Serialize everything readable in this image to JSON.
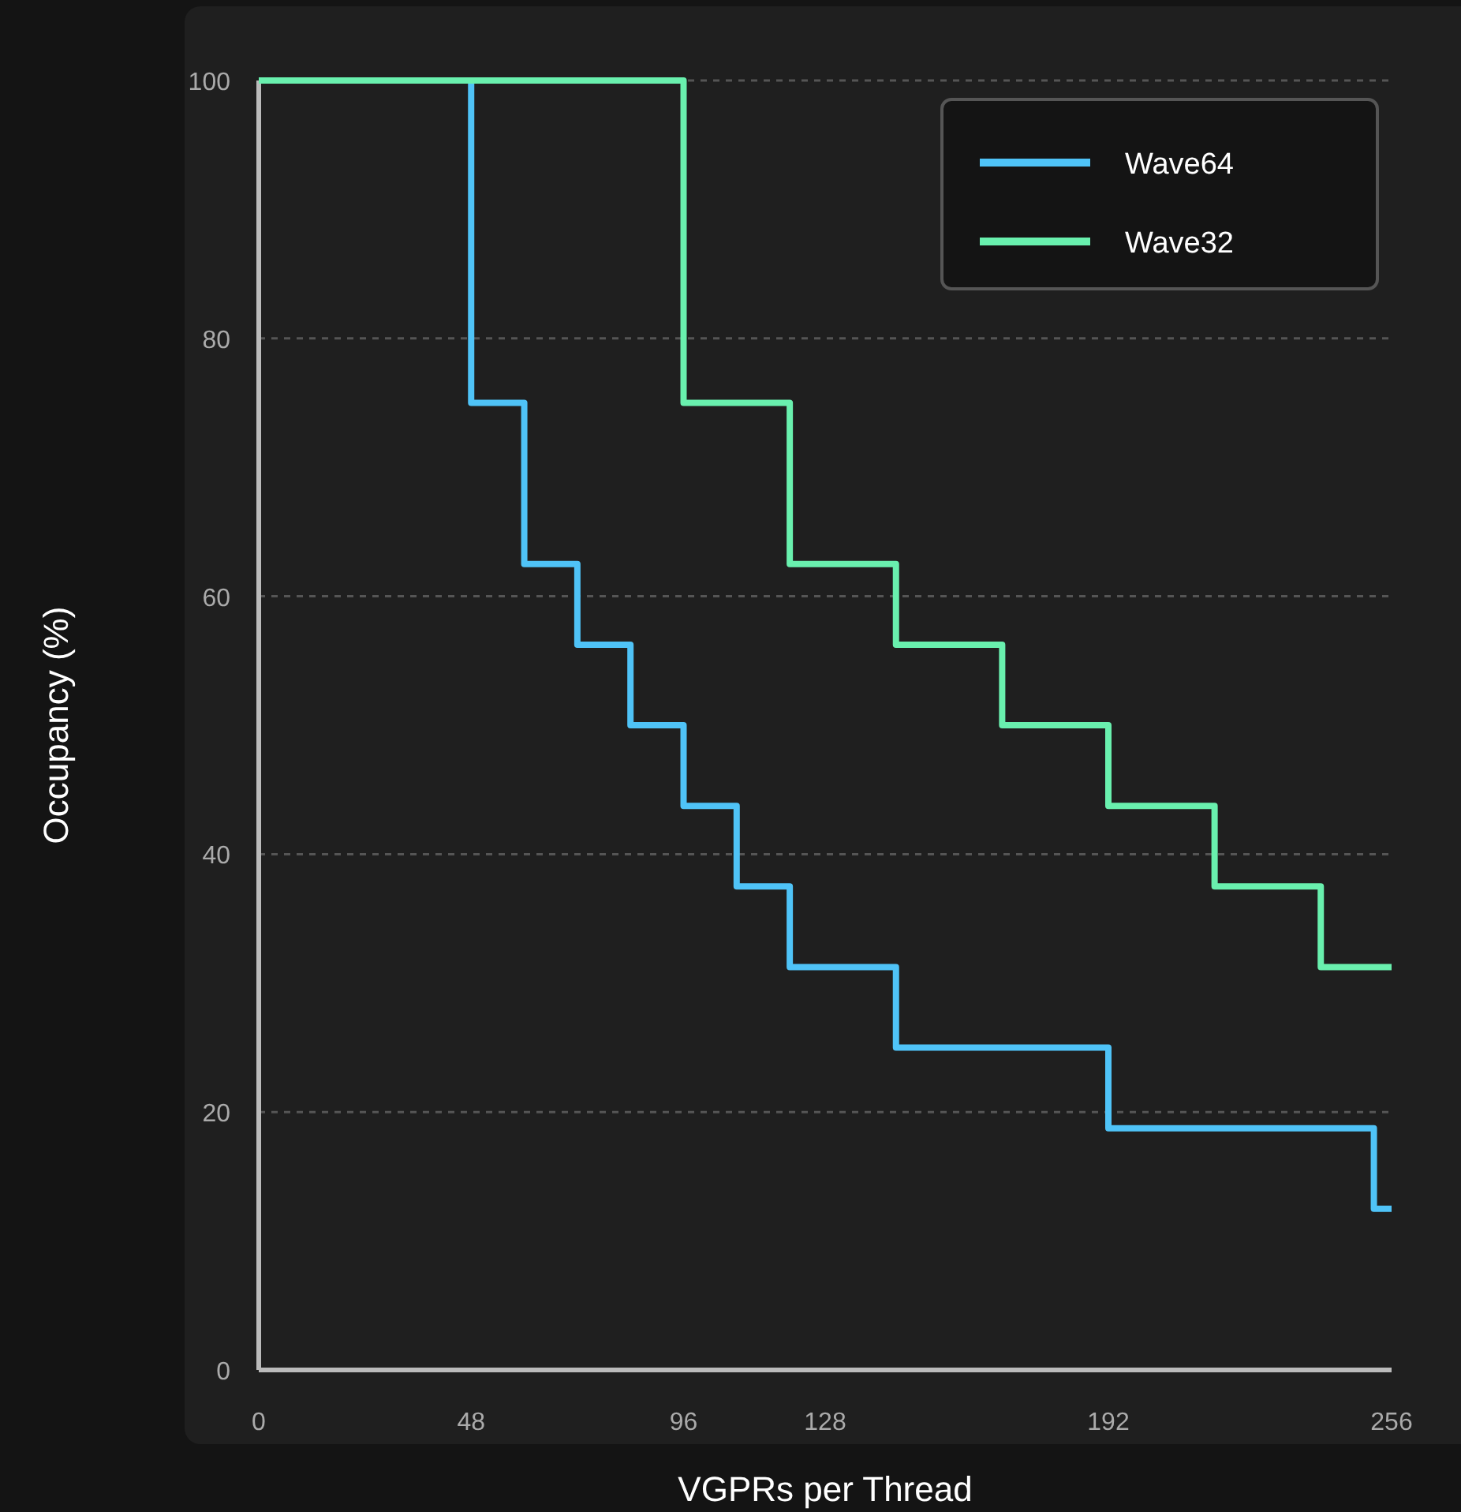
{
  "chart_data": {
    "type": "step",
    "xlabel": "VGPRs per Thread",
    "ylabel": "Occupancy (%)",
    "xlim": [
      0,
      256
    ],
    "xticks": [
      0,
      48,
      96,
      128,
      192,
      256
    ],
    "ylim": [
      0,
      100
    ],
    "yticks": [
      0,
      20,
      40,
      60,
      80,
      100
    ],
    "grid": "y",
    "legend": "top right",
    "series": [
      {
        "name": "Wave64",
        "color": "#4fc3f7",
        "x": [
          0,
          48,
          60,
          72,
          84,
          96,
          108,
          120,
          144,
          192,
          252,
          256
        ],
        "values": [
          100,
          75,
          62.5,
          56.25,
          50,
          43.75,
          37.5,
          31.25,
          25,
          18.75,
          12.5,
          12.5
        ]
      },
      {
        "name": "Wave32",
        "color": "#69f0ae",
        "x": [
          0,
          96,
          120,
          144,
          168,
          192,
          216,
          240,
          256
        ],
        "values": [
          100,
          75,
          62.5,
          56.25,
          50,
          43.75,
          37.5,
          31.25,
          31.25
        ]
      }
    ]
  }
}
